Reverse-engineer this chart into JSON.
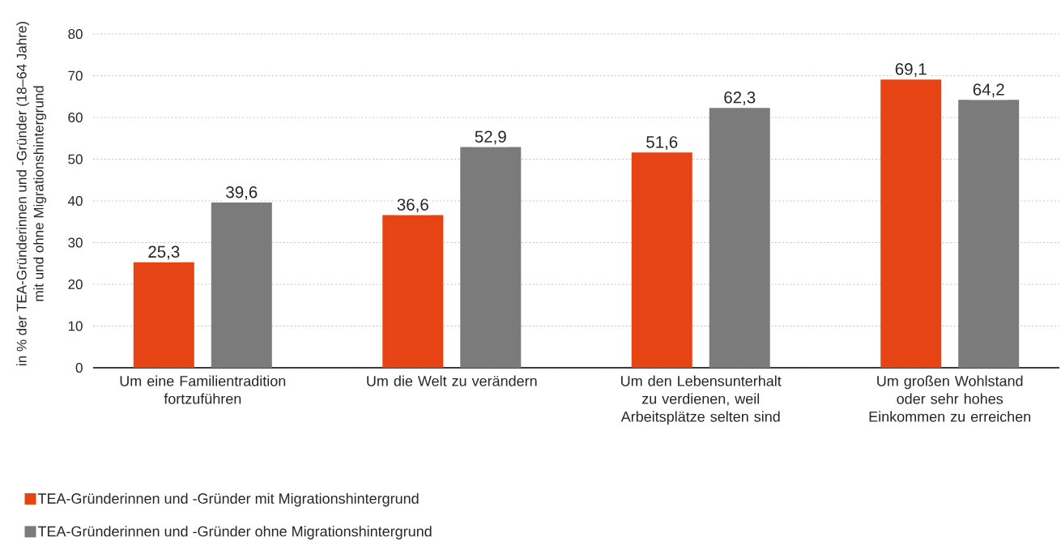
{
  "chart_data": {
    "type": "bar",
    "ylabel": "in % der TEA-Gründerinnen und -Gründer (18–64 Jahre) mit und ohne Migrationshintergrund",
    "categories": [
      "Um eine Familientradition fortzuführen",
      "Um die Welt zu verändern",
      "Um den Lebensunterhalt zu verdienen, weil Arbeitsplätze selten sind",
      "Um großen Wohlstand oder sehr hohes Einkommen zu erreichen"
    ],
    "series": [
      {
        "name": "TEA-Gründerinnen und -Gründer mit Migrationshintergrund",
        "color": "#e64415",
        "values": [
          25.3,
          36.6,
          51.6,
          69.1
        ],
        "value_labels": [
          "25,3",
          "36,6",
          "51,6",
          "69,1"
        ]
      },
      {
        "name": "TEA-Gründerinnen und -Gründer ohne Migrationshintergrund",
        "color": "#7b7b7b",
        "values": [
          39.6,
          52.9,
          62.3,
          64.2
        ],
        "value_labels": [
          "39,6",
          "52,9",
          "62,3",
          "64,2"
        ]
      }
    ],
    "ylim": [
      0,
      80
    ],
    "yticks": [
      0,
      10,
      20,
      30,
      40,
      50,
      60,
      70,
      80
    ],
    "grid": "y",
    "legend": "bottom left"
  }
}
